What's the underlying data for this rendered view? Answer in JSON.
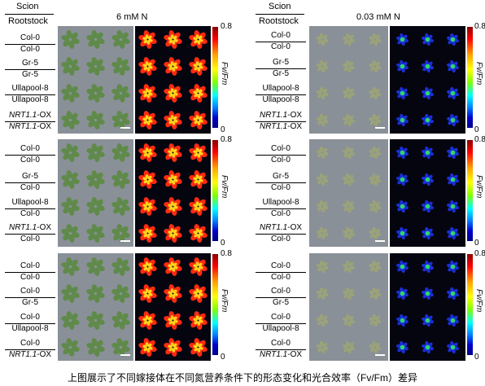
{
  "headers": {
    "left": {
      "scion": "Scion",
      "rootstock": "Rootstock",
      "condition": "6 mM N"
    },
    "right": {
      "scion": "Scion",
      "rootstock": "Rootstock",
      "condition": "0.03 mM N"
    }
  },
  "panels": [
    {
      "rows": [
        {
          "scion": "Col-0",
          "rootstock": "Col-0"
        },
        {
          "scion": "Gr-5",
          "rootstock": "Gr-5"
        },
        {
          "scion": "Ullapool-8",
          "rootstock": "Ullapool-8"
        },
        {
          "scion_it": "NRT1.1",
          "scion_rest": "-OX",
          "rootstock_it": "NRT1.1",
          "rootstock_rest": "-OX"
        }
      ]
    },
    {
      "rows": [
        {
          "scion": "Col-0",
          "rootstock": "Col-0"
        },
        {
          "scion": "Gr-5",
          "rootstock": "Col-0"
        },
        {
          "scion": "Ullapool-8",
          "rootstock": "Col-0"
        },
        {
          "scion_it": "NRT1.1",
          "scion_rest": "-OX",
          "rootstock": "Col-0"
        }
      ]
    },
    {
      "rows": [
        {
          "scion": "Col-0",
          "rootstock": "Col-0"
        },
        {
          "scion": "Col-0",
          "rootstock": "Gr-5"
        },
        {
          "scion": "Col-0",
          "rootstock": "Ullapool-8"
        },
        {
          "scion": "Col-0",
          "rootstock_it": "NRT1.1",
          "rootstock_rest": "-OX"
        }
      ]
    }
  ],
  "colorbar": {
    "max": "0.8",
    "min": "0",
    "label": "Fv/Fm"
  },
  "colors": {
    "photo_bg": "#8a9097",
    "fluor_bg": "#050510"
  },
  "caption": "上图展示了不同嫁接体在不同氮营养条件下的形态变化和光合效率（Fv/Fm）差异"
}
